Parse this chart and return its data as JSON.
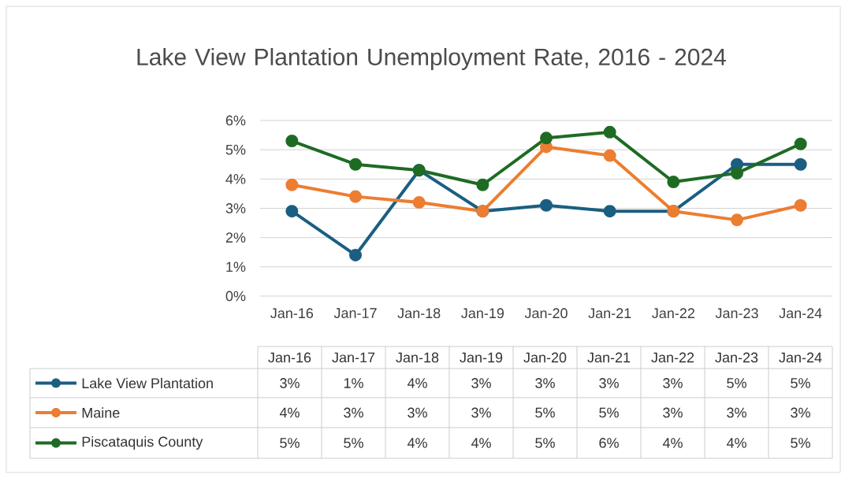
{
  "chart_data": {
    "type": "line",
    "title": "Lake View Plantation Unemployment Rate, 2016 - 2024",
    "categories": [
      "Jan-16",
      "Jan-17",
      "Jan-18",
      "Jan-19",
      "Jan-20",
      "Jan-21",
      "Jan-22",
      "Jan-23",
      "Jan-24"
    ],
    "series": [
      {
        "name": "Lake View Plantation",
        "color": "#1b5e82",
        "values": [
          2.9,
          1.4,
          4.3,
          2.9,
          3.1,
          2.9,
          2.9,
          4.5,
          4.5
        ],
        "value_labels": [
          "3%",
          "1%",
          "4%",
          "3%",
          "3%",
          "3%",
          "3%",
          "5%",
          "5%"
        ]
      },
      {
        "name": "Maine",
        "color": "#ed7d31",
        "values": [
          3.8,
          3.4,
          3.2,
          2.9,
          5.1,
          4.8,
          2.9,
          2.6,
          3.1
        ],
        "value_labels": [
          "4%",
          "3%",
          "3%",
          "3%",
          "5%",
          "5%",
          "3%",
          "3%",
          "3%"
        ]
      },
      {
        "name": "Piscataquis County",
        "color": "#1e6b24",
        "values": [
          5.3,
          4.5,
          4.3,
          3.8,
          5.4,
          5.6,
          3.9,
          4.2,
          5.2
        ],
        "value_labels": [
          "5%",
          "5%",
          "4%",
          "4%",
          "5%",
          "6%",
          "4%",
          "4%",
          "5%"
        ]
      }
    ],
    "ylim": [
      0,
      6
    ],
    "yticks": [
      {
        "value": 0,
        "label": "0%"
      },
      {
        "value": 1,
        "label": "1%"
      },
      {
        "value": 2,
        "label": "2%"
      },
      {
        "value": 3,
        "label": "3%"
      },
      {
        "value": 4,
        "label": "4%"
      },
      {
        "value": 5,
        "label": "5%"
      },
      {
        "value": 6,
        "label": "6%"
      }
    ],
    "grid": "y",
    "legend": "bottom",
    "marker": "circle"
  }
}
